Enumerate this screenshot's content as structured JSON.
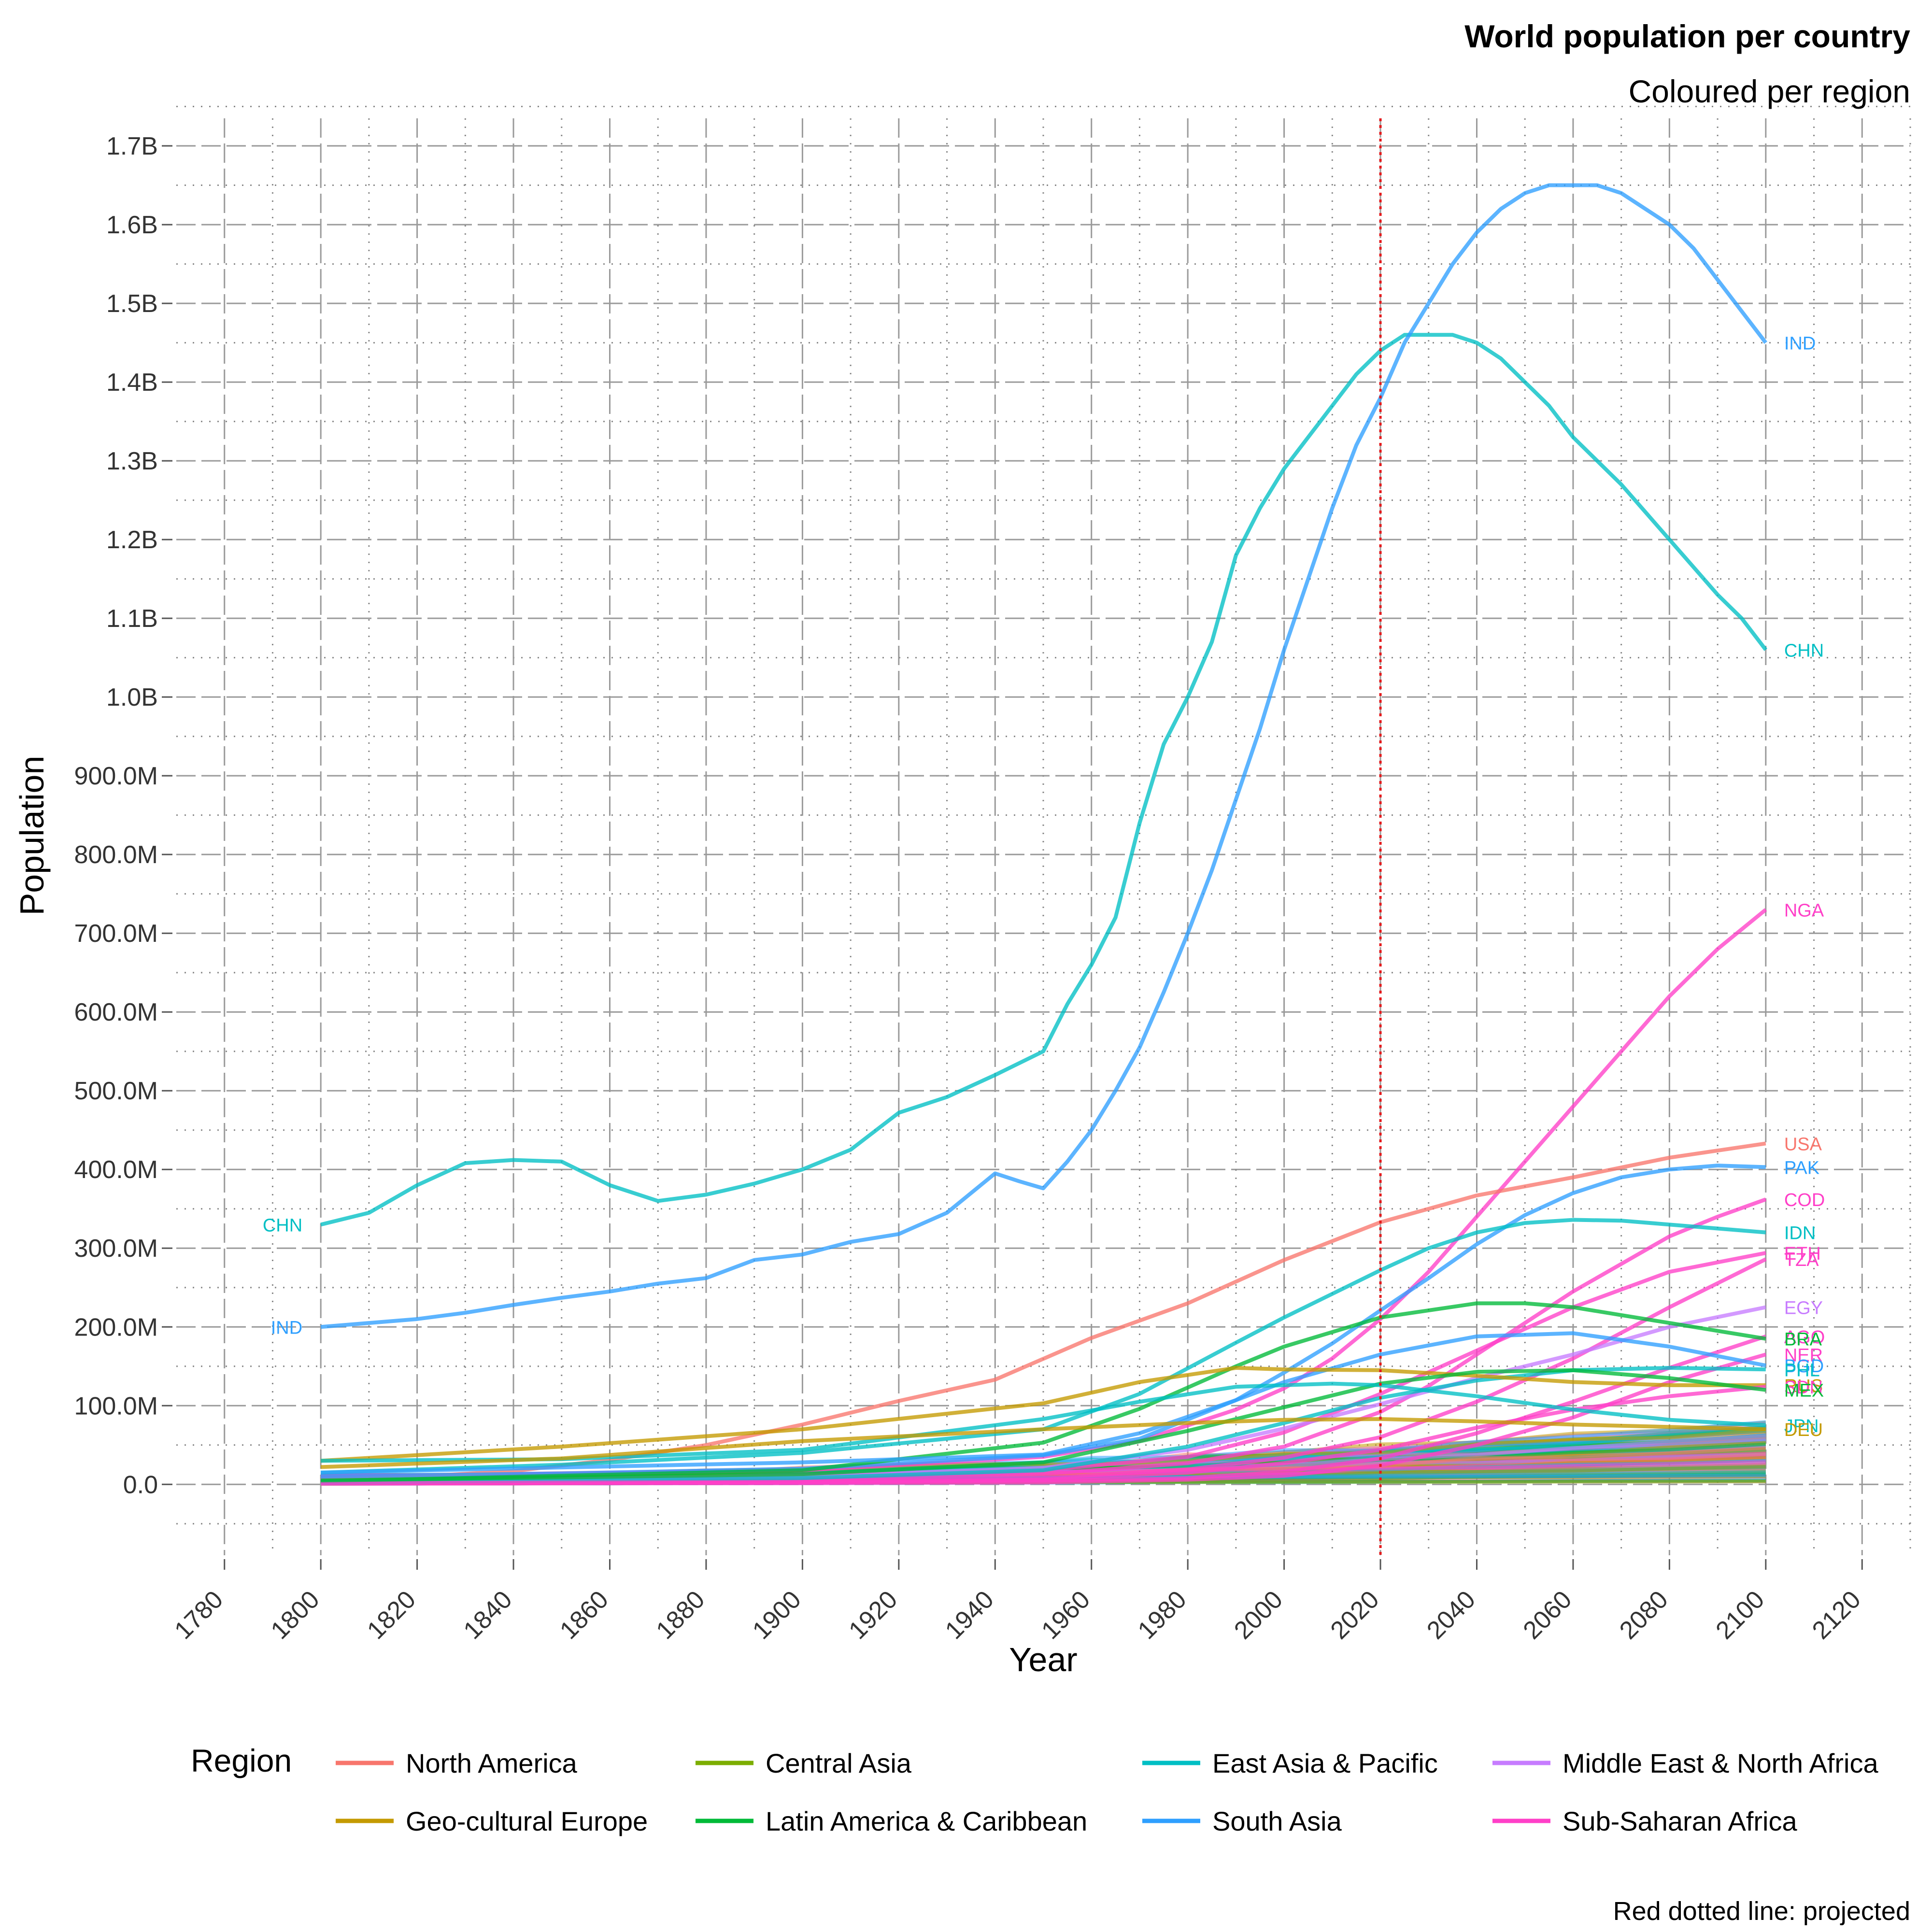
{
  "chart_data": {
    "type": "line",
    "title": "World population per country",
    "subtitle": "Coloured per region",
    "caption": "Red dotted line: projected",
    "xlabel": "Year",
    "ylabel": "Population",
    "xlim": [
      1770,
      2130
    ],
    "ylim": [
      -90000000,
      1735000000
    ],
    "x_ticks": [
      1780,
      1800,
      1820,
      1840,
      1860,
      1880,
      1900,
      1920,
      1940,
      1960,
      1980,
      2000,
      2020,
      2040,
      2060,
      2080,
      2100,
      2120
    ],
    "y_ticks": [
      0,
      100000000,
      200000000,
      300000000,
      400000000,
      500000000,
      600000000,
      700000000,
      800000000,
      900000000,
      1000000000,
      1100000000,
      1200000000,
      1300000000,
      1400000000,
      1500000000,
      1600000000,
      1700000000
    ],
    "y_tick_labels": [
      "0.0",
      "100.0M",
      "200.0M",
      "300.0M",
      "400.0M",
      "500.0M",
      "600.0M",
      "700.0M",
      "800.0M",
      "900.0M",
      "1.0B",
      "1.1B",
      "1.2B",
      "1.3B",
      "1.4B",
      "1.5B",
      "1.6B",
      "1.7B"
    ],
    "grid": true,
    "projection_line": {
      "x": 2020,
      "color": "#e41a1c",
      "style": "dotted"
    },
    "legend": {
      "title": "Region",
      "position": "bottom",
      "entries": [
        {
          "label": "North America",
          "color": "#F8766D"
        },
        {
          "label": "Geo-cultural Europe",
          "color": "#C49A00"
        },
        {
          "label": "Central Asia",
          "color": "#7CAE00"
        },
        {
          "label": "Latin America & Caribbean",
          "color": "#00BA38"
        },
        {
          "label": "East Asia & Pacific",
          "color": "#00BFC4"
        },
        {
          "label": "South Asia",
          "color": "#2E9FFF"
        },
        {
          "label": "Middle East & North Africa",
          "color": "#C77CFF"
        },
        {
          "label": "Sub-Saharan Africa",
          "color": "#FF3FC8"
        }
      ]
    },
    "series": [
      {
        "name": "CHN",
        "region": "East Asia & Pacific",
        "x": [
          1800,
          1810,
          1820,
          1830,
          1840,
          1850,
          1860,
          1870,
          1880,
          1890,
          1900,
          1910,
          1920,
          1930,
          1940,
          1950,
          1955,
          1960,
          1965,
          1970,
          1975,
          1980,
          1985,
          1990,
          1995,
          2000,
          2005,
          2010,
          2015,
          2020,
          2025,
          2030,
          2035,
          2040,
          2045,
          2050,
          2055,
          2060,
          2065,
          2070,
          2075,
          2080,
          2085,
          2090,
          2095,
          2100
        ],
        "y": [
          330,
          345,
          380,
          408,
          412,
          410,
          380,
          360,
          368,
          382,
          400,
          425,
          472,
          492,
          520,
          550,
          610,
          660,
          720,
          840,
          940,
          1000,
          1070,
          1180,
          1240,
          1290,
          1330,
          1370,
          1410,
          1440,
          1460,
          1460,
          1460,
          1450,
          1430,
          1400,
          1370,
          1330,
          1300,
          1270,
          1235,
          1200,
          1165,
          1130,
          1100,
          1060
        ]
      },
      {
        "name": "IND",
        "region": "South Asia",
        "x": [
          1800,
          1810,
          1820,
          1830,
          1840,
          1850,
          1860,
          1870,
          1880,
          1890,
          1900,
          1910,
          1920,
          1930,
          1940,
          1945,
          1950,
          1955,
          1960,
          1965,
          1970,
          1975,
          1980,
          1985,
          1990,
          1995,
          2000,
          2005,
          2010,
          2015,
          2020,
          2025,
          2030,
          2035,
          2040,
          2045,
          2050,
          2055,
          2060,
          2065,
          2070,
          2075,
          2080,
          2085,
          2090,
          2095,
          2100
        ],
        "y": [
          200,
          205,
          210,
          218,
          228,
          237,
          245,
          255,
          262,
          285,
          292,
          308,
          318,
          345,
          395,
          385,
          376,
          410,
          450,
          500,
          555,
          625,
          700,
          780,
          870,
          960,
          1060,
          1150,
          1240,
          1320,
          1380,
          1450,
          1500,
          1550,
          1590,
          1620,
          1640,
          1650,
          1650,
          1650,
          1640,
          1620,
          1600,
          1570,
          1530,
          1490,
          1450
        ]
      },
      {
        "name": "NGA",
        "region": "Sub-Saharan Africa",
        "x": [
          1800,
          1850,
          1900,
          1950,
          1970,
          1990,
          2000,
          2010,
          2020,
          2030,
          2040,
          2050,
          2060,
          2070,
          2080,
          2090,
          2100
        ],
        "y": [
          10,
          14,
          18,
          35,
          55,
          95,
          122,
          160,
          210,
          270,
          340,
          410,
          480,
          550,
          620,
          680,
          730
        ]
      },
      {
        "name": "USA",
        "region": "North America",
        "x": [
          1800,
          1820,
          1840,
          1860,
          1880,
          1900,
          1920,
          1940,
          1960,
          1980,
          2000,
          2020,
          2040,
          2060,
          2080,
          2100
        ],
        "y": [
          6,
          10,
          17,
          31,
          50,
          76,
          106,
          133,
          186,
          230,
          285,
          333,
          367,
          390,
          415,
          433
        ]
      },
      {
        "name": "PAK",
        "region": "South Asia",
        "x": [
          1800,
          1850,
          1900,
          1950,
          1970,
          1990,
          2000,
          2010,
          2020,
          2030,
          2040,
          2050,
          2060,
          2070,
          2080,
          2090,
          2100
        ],
        "y": [
          10,
          14,
          20,
          37,
          58,
          107,
          142,
          179,
          221,
          262,
          305,
          342,
          370,
          390,
          400,
          405,
          403
        ]
      },
      {
        "name": "COD",
        "region": "Sub-Saharan Africa",
        "x": [
          1800,
          1900,
          1950,
          1980,
          2000,
          2020,
          2030,
          2040,
          2050,
          2060,
          2070,
          2080,
          2090,
          2100
        ],
        "y": [
          5,
          7,
          13,
          27,
          48,
          92,
          125,
          165,
          205,
          245,
          280,
          315,
          340,
          362
        ]
      },
      {
        "name": "IDN",
        "region": "East Asia & Pacific",
        "x": [
          1800,
          1850,
          1900,
          1950,
          1970,
          1990,
          2000,
          2010,
          2020,
          2030,
          2040,
          2050,
          2060,
          2070,
          2080,
          2090,
          2100
        ],
        "y": [
          15,
          25,
          40,
          70,
          115,
          180,
          212,
          242,
          272,
          300,
          320,
          332,
          336,
          335,
          330,
          325,
          320
        ]
      },
      {
        "name": "ETH",
        "region": "Sub-Saharan Africa",
        "x": [
          1800,
          1900,
          1950,
          1980,
          2000,
          2020,
          2040,
          2060,
          2080,
          2100
        ],
        "y": [
          4,
          8,
          18,
          35,
          66,
          115,
          170,
          225,
          270,
          294
        ]
      },
      {
        "name": "TZA",
        "region": "Sub-Saharan Africa",
        "x": [
          1800,
          1900,
          1950,
          1980,
          2000,
          2020,
          2040,
          2060,
          2080,
          2100
        ],
        "y": [
          2,
          4,
          8,
          19,
          34,
          60,
          105,
          160,
          225,
          286
        ]
      },
      {
        "name": "EGY",
        "region": "Middle East & North Africa",
        "x": [
          1800,
          1900,
          1950,
          1980,
          2000,
          2020,
          2040,
          2060,
          2080,
          2100
        ],
        "y": [
          4,
          10,
          21,
          44,
          71,
          102,
          135,
          165,
          200,
          225
        ]
      },
      {
        "name": "AGO",
        "region": "Sub-Saharan Africa",
        "x": [
          1800,
          1900,
          1950,
          1980,
          2000,
          2020,
          2040,
          2060,
          2080,
          2100
        ],
        "y": [
          1.5,
          2.5,
          4.5,
          8,
          16,
          33,
          65,
          105,
          148,
          188
        ]
      },
      {
        "name": "BRA",
        "region": "Latin America & Caribbean",
        "x": [
          1800,
          1900,
          1950,
          1970,
          1990,
          2000,
          2020,
          2040,
          2050,
          2060,
          2080,
          2100
        ],
        "y": [
          4,
          18,
          53,
          96,
          150,
          175,
          212,
          230,
          230,
          225,
          205,
          185
        ]
      },
      {
        "name": "NER",
        "region": "Sub-Saharan Africa",
        "x": [
          1800,
          1900,
          1950,
          1980,
          2000,
          2020,
          2040,
          2060,
          2080,
          2100
        ],
        "y": [
          1,
          1.5,
          2.5,
          6,
          11,
          24,
          50,
          85,
          130,
          165
        ]
      },
      {
        "name": "BGD",
        "region": "South Asia",
        "x": [
          1800,
          1900,
          1950,
          1970,
          1990,
          2000,
          2020,
          2040,
          2060,
          2080,
          2100
        ],
        "y": [
          15,
          28,
          38,
          65,
          107,
          130,
          165,
          188,
          192,
          175,
          151
        ]
      },
      {
        "name": "PHL",
        "region": "East Asia & Pacific",
        "x": [
          1800,
          1900,
          1950,
          1980,
          2000,
          2020,
          2040,
          2060,
          2080,
          2100
        ],
        "y": [
          2,
          8,
          18,
          48,
          78,
          110,
          132,
          145,
          148,
          146
        ]
      },
      {
        "name": "RUS",
        "region": "Geo-cultural Europe",
        "x": [
          1800,
          1850,
          1900,
          1950,
          1970,
          1990,
          2000,
          2020,
          2040,
          2060,
          2080,
          2100
        ],
        "y": [
          30,
          48,
          70,
          103,
          130,
          148,
          146,
          145,
          138,
          130,
          126,
          126
        ]
      },
      {
        "name": "SDN",
        "region": "Sub-Saharan Africa",
        "x": [
          1800,
          1900,
          1950,
          1980,
          2000,
          2020,
          2040,
          2060,
          2080,
          2100
        ],
        "y": [
          1.5,
          3,
          6,
          15,
          27,
          44,
          72,
          95,
          112,
          124
        ]
      },
      {
        "name": "MEX",
        "region": "Latin America & Caribbean",
        "x": [
          1800,
          1900,
          1950,
          1980,
          2000,
          2020,
          2040,
          2060,
          2080,
          2100
        ],
        "y": [
          5,
          13,
          28,
          68,
          98,
          128,
          143,
          145,
          135,
          120
        ]
      },
      {
        "name": "JPN",
        "region": "East Asia & Pacific",
        "x": [
          1800,
          1850,
          1900,
          1950,
          1970,
          1990,
          2010,
          2020,
          2040,
          2060,
          2080,
          2100
        ],
        "y": [
          30,
          32,
          44,
          83,
          105,
          124,
          128,
          126,
          112,
          95,
          82,
          75
        ]
      },
      {
        "name": "DEU",
        "region": "Geo-cultural Europe",
        "x": [
          1800,
          1850,
          1900,
          1950,
          1980,
          2000,
          2020,
          2040,
          2060,
          2080,
          2100
        ],
        "y": [
          22,
          33,
          55,
          70,
          78,
          82,
          83,
          80,
          76,
          73,
          70
        ]
      }
    ],
    "minor_countries_note": "many additional countries rendered as low lines near 0-100M"
  }
}
